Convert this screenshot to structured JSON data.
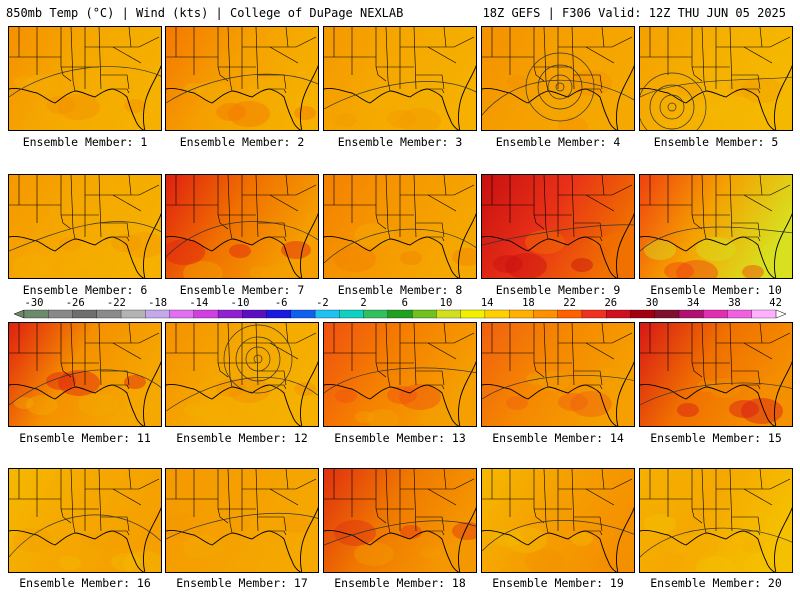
{
  "header": {
    "left": "850mb Temp (°C) | Wind (kts) | College of DuPage NEXLAB",
    "right": "18Z GEFS | F306 Valid: 12Z THU JUN 05 2025"
  },
  "colorbar": {
    "labels": [
      "-30",
      "-26",
      "-22",
      "-18",
      "-14",
      "-10",
      "-6",
      "-2",
      "2",
      "6",
      "10",
      "14",
      "18",
      "22",
      "26",
      "30",
      "34",
      "38",
      "42"
    ],
    "colors": [
      "#6c8a6c",
      "#888888",
      "#6e6e6e",
      "#8a8a8a",
      "#b3b3b3",
      "#c4a8e8",
      "#e070f0",
      "#d040e0",
      "#9020d0",
      "#5a10c0",
      "#1a1ae0",
      "#1060f0",
      "#20c0f0",
      "#10d0c0",
      "#30c060",
      "#20a020",
      "#70c020",
      "#d0e020",
      "#f0f000",
      "#ffd000",
      "#ffb000",
      "#ff9000",
      "#ff6000",
      "#f03020",
      "#d01020",
      "#a00010",
      "#801030",
      "#b01070",
      "#e030b0",
      "#f060e0",
      "#ffb0ff"
    ]
  },
  "panels": [
    {
      "label": "Ensemble Member: 1"
    },
    {
      "label": "Ensemble Member: 2"
    },
    {
      "label": "Ensemble Member: 3"
    },
    {
      "label": "Ensemble Member: 4"
    },
    {
      "label": "Ensemble Member: 5"
    },
    {
      "label": "Ensemble Member: 6"
    },
    {
      "label": "Ensemble Member: 7"
    },
    {
      "label": "Ensemble Member: 8"
    },
    {
      "label": "Ensemble Member: 9"
    },
    {
      "label": "Ensemble Member: 10"
    },
    {
      "label": "Ensemble Member: 11"
    },
    {
      "label": "Ensemble Member: 12"
    },
    {
      "label": "Ensemble Member: 13"
    },
    {
      "label": "Ensemble Member: 14"
    },
    {
      "label": "Ensemble Member: 15"
    },
    {
      "label": "Ensemble Member: 16"
    },
    {
      "label": "Ensemble Member: 17"
    },
    {
      "label": "Ensemble Member: 18"
    },
    {
      "label": "Ensemble Member: 19"
    },
    {
      "label": "Ensemble Member: 20"
    }
  ],
  "panel_fill": [
    {
      "base": "#f5a800",
      "west": "#f59000",
      "east": "#f5b000"
    },
    {
      "base": "#f5a000",
      "west": "#f57800",
      "east": "#f5b000"
    },
    {
      "base": "#f5a800",
      "west": "#f59800",
      "east": "#f5b000"
    },
    {
      "base": "#f5a000",
      "west": "#f59000",
      "east": "#f5a800"
    },
    {
      "base": "#f5b000",
      "west": "#f5a000",
      "east": "#f5b800"
    },
    {
      "base": "#f5a800",
      "west": "#f59800",
      "east": "#f5b000"
    },
    {
      "base": "#f07000",
      "west": "#e02010",
      "east": "#f5a000"
    },
    {
      "base": "#f59800",
      "west": "#f58000",
      "east": "#f5a800"
    },
    {
      "base": "#e83018",
      "west": "#c81010",
      "east": "#f07000"
    },
    {
      "base": "#f5a000",
      "west": "#f04010",
      "east": "#d8e020"
    },
    {
      "base": "#f59000",
      "west": "#e02010",
      "east": "#f5a800"
    },
    {
      "base": "#f5a800",
      "west": "#f59000",
      "east": "#f5b000"
    },
    {
      "base": "#f58000",
      "west": "#f05010",
      "east": "#f5a000"
    },
    {
      "base": "#f58800",
      "west": "#f06010",
      "east": "#f5a000"
    },
    {
      "base": "#f07000",
      "west": "#d81818",
      "east": "#f59000"
    },
    {
      "base": "#f5a800",
      "west": "#f5b800",
      "east": "#f5a000"
    },
    {
      "base": "#f5a000",
      "west": "#f59800",
      "east": "#f5a800"
    },
    {
      "base": "#f07800",
      "west": "#e03010",
      "east": "#f59800"
    },
    {
      "base": "#f5a000",
      "west": "#f5b800",
      "east": "#f59000"
    },
    {
      "base": "#f5a800",
      "west": "#f5b000",
      "east": "#f5c000"
    }
  ]
}
